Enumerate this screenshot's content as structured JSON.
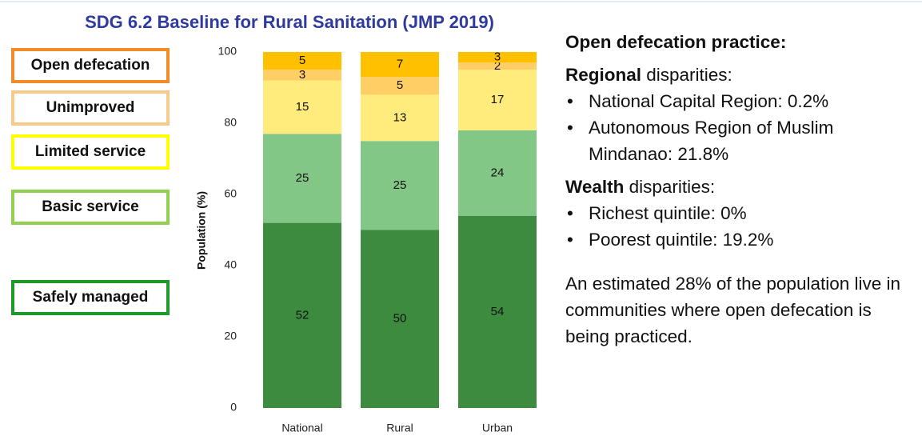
{
  "chart_data": {
    "type": "stacked_bar",
    "title": "SDG 6.2 Baseline for Rural Sanitation (JMP 2019)",
    "y_label": "Population (%)",
    "categories": [
      "National",
      "Rural",
      "Urban"
    ],
    "series": [
      {
        "name": "Safely managed",
        "color": "#3c8b3f",
        "legend_color": "#1f9a2a",
        "values": [
          52,
          50,
          54
        ]
      },
      {
        "name": "Basic service",
        "color": "#82c785",
        "legend_color": "#92d050",
        "values": [
          25,
          25,
          24
        ]
      },
      {
        "name": "Limited service",
        "color": "#ffec7d",
        "legend_color": "#ffff00",
        "values": [
          15,
          13,
          17
        ]
      },
      {
        "name": "Unimproved",
        "color": "#ffcf66",
        "legend_color": "#f9c98a",
        "values": [
          3,
          5,
          2
        ]
      },
      {
        "name": "Open defecation",
        "color": "#ffc000",
        "legend_color": "#f28c28",
        "values": [
          5,
          7,
          3
        ]
      }
    ],
    "ylim": [
      0,
      100
    ],
    "yticks": [
      0,
      20,
      40,
      60,
      80,
      100
    ],
    "grid": false
  },
  "text_panel": {
    "heading": "Open defecation practice:",
    "sections": [
      {
        "bold": "Regional",
        "rest": " disparities:",
        "bullets": [
          "National Capital Region: 0.2%",
          "Autonomous Region of Muslim Mindanao: 21.8%"
        ]
      },
      {
        "bold": "Wealth",
        "rest": " disparities:",
        "bullets": [
          "Richest quintile: 0%",
          "Poorest quintile: 19.2%"
        ]
      }
    ],
    "footer": "An estimated 28% of the population live in communities where open defecation is being practiced."
  }
}
